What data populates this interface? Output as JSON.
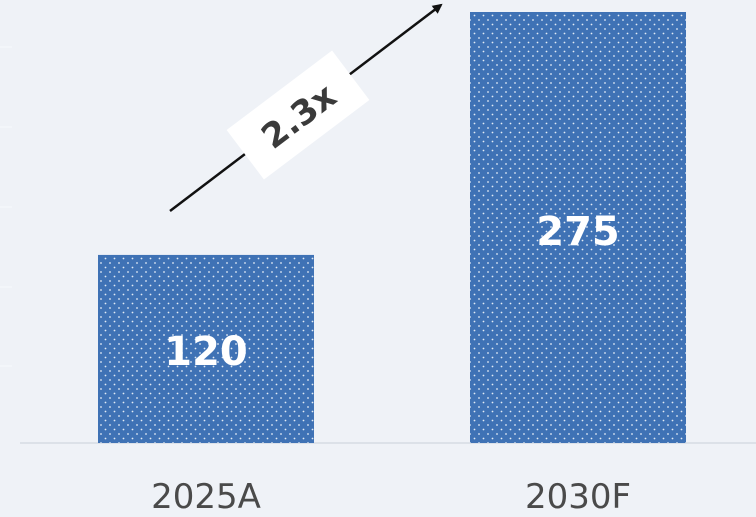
{
  "chart_data": {
    "type": "bar",
    "categories": [
      "2025A",
      "2030F"
    ],
    "values": [
      120,
      275
    ],
    "ylim": [
      0,
      275
    ],
    "grid": false,
    "legend": "none",
    "bar_color": "#3f72b5",
    "annotation": {
      "text": "2.3x",
      "from_category": 0,
      "to_category": 1
    }
  }
}
